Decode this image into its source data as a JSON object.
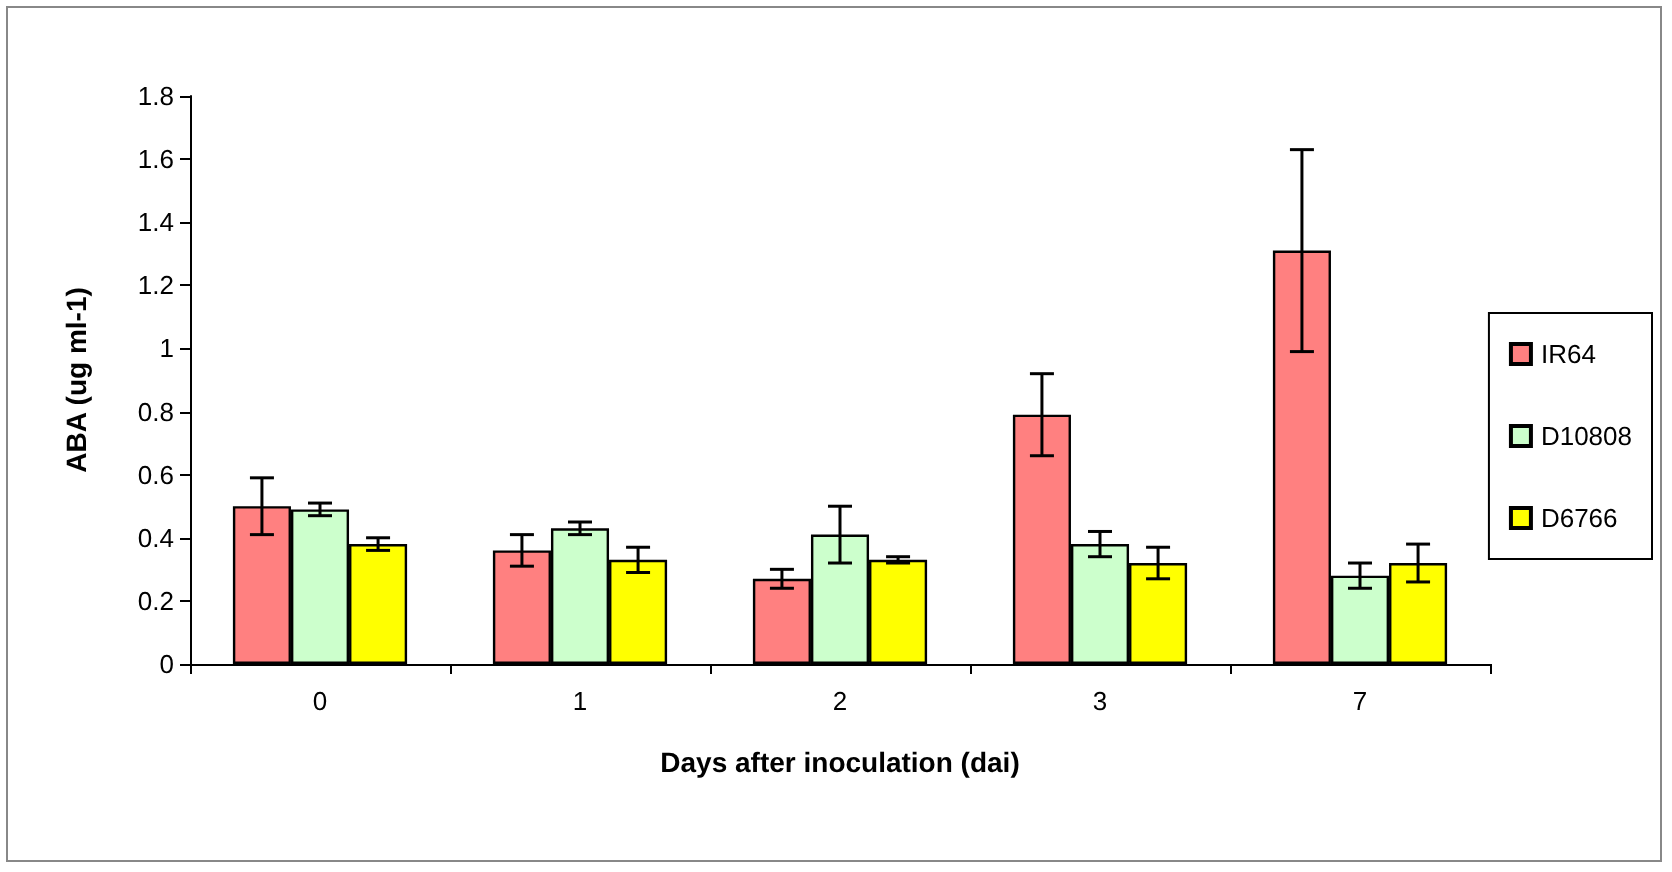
{
  "chart_data": {
    "type": "bar",
    "xlabel": "Days after inoculation (dai)",
    "ylabel": "ABA (ug ml-1)",
    "categories": [
      "0",
      "1",
      "2",
      "3",
      "7"
    ],
    "series": [
      {
        "name": "IR64",
        "color": "#ff8080",
        "values": [
          0.5,
          0.36,
          0.27,
          0.79,
          1.31
        ],
        "errors": [
          0.09,
          0.05,
          0.03,
          0.13,
          0.32
        ]
      },
      {
        "name": "D10808",
        "color": "#ccffcc",
        "values": [
          0.49,
          0.43,
          0.41,
          0.38,
          0.28
        ],
        "errors": [
          0.02,
          0.02,
          0.09,
          0.04,
          0.04
        ]
      },
      {
        "name": "D6766",
        "color": "#ffff00",
        "values": [
          0.38,
          0.33,
          0.33,
          0.32,
          0.32
        ],
        "errors": [
          0.02,
          0.04,
          0.01,
          0.05,
          0.06
        ]
      }
    ],
    "ylim": [
      0,
      1.8
    ],
    "yticks": [
      0,
      0.2,
      0.4,
      0.6,
      0.8,
      1,
      1.2,
      1.4,
      1.6,
      1.8
    ],
    "grid": false,
    "legend": "right"
  }
}
